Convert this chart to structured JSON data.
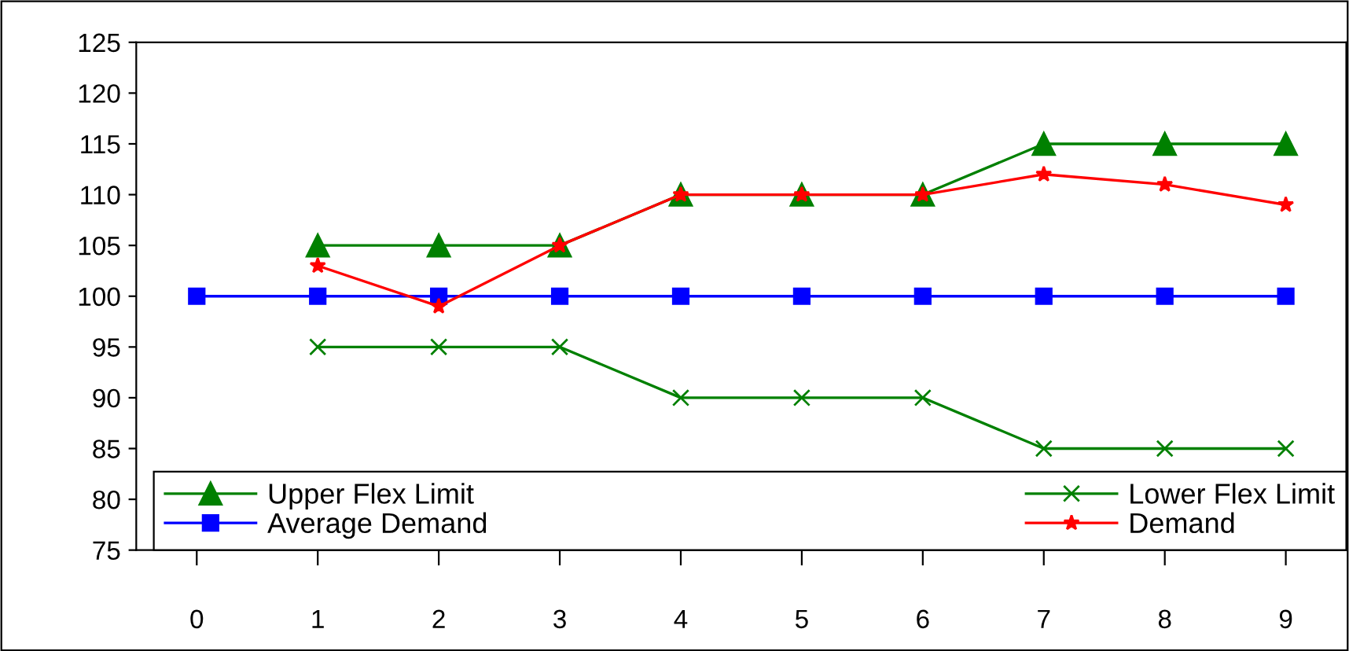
{
  "chart_data": {
    "type": "line",
    "x": [
      0,
      1,
      2,
      3,
      4,
      5,
      6,
      7,
      8,
      9
    ],
    "series": [
      {
        "name": "Upper Flex Limit",
        "color": "#008000",
        "marker": "triangle",
        "values": [
          null,
          105,
          105,
          105,
          110,
          110,
          110,
          115,
          115,
          115
        ]
      },
      {
        "name": "Lower Flex Limit",
        "color": "#008000",
        "marker": "cross",
        "values": [
          null,
          95,
          95,
          95,
          90,
          90,
          90,
          85,
          85,
          85
        ]
      },
      {
        "name": "Average Demand",
        "color": "#0000ff",
        "marker": "square",
        "values": [
          100,
          100,
          100,
          100,
          100,
          100,
          100,
          100,
          100,
          100
        ]
      },
      {
        "name": "Demand",
        "color": "#ff0000",
        "marker": "star",
        "values": [
          null,
          103,
          99,
          105,
          110,
          110,
          110,
          112,
          111,
          109
        ]
      }
    ],
    "xlim": [
      -0.5,
      9.5
    ],
    "xticks": [
      0,
      1,
      2,
      3,
      4,
      5,
      6,
      7,
      8,
      9
    ],
    "ylim": [
      75,
      125
    ],
    "yticks": [
      75,
      80,
      85,
      90,
      95,
      100,
      105,
      110,
      115,
      120,
      125
    ],
    "grid": false,
    "legend": "bottom",
    "line_style": "solid"
  }
}
